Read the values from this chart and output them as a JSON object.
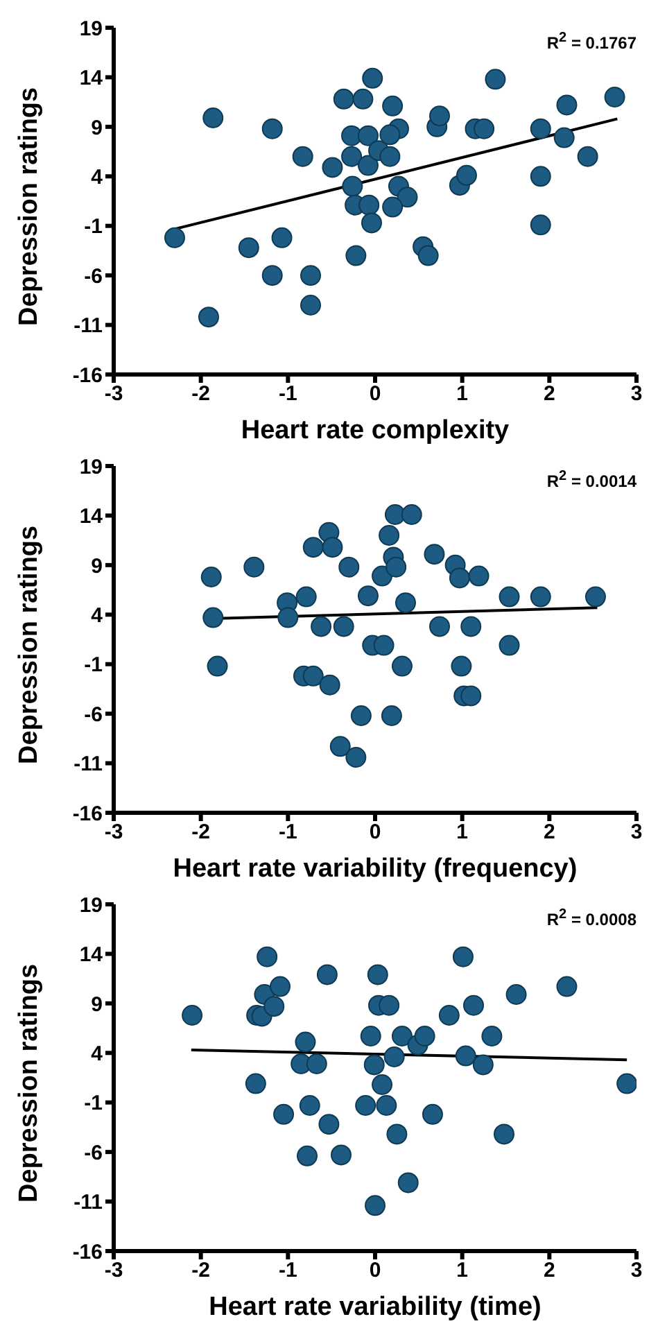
{
  "chart_data": [
    {
      "type": "scatter",
      "xlabel": "Heart rate complexity",
      "ylabel": "Depression ratings",
      "annotations": [
        "R$^{2}$ = 0.1767"
      ],
      "xlim": [
        -3,
        3
      ],
      "xticks": [
        -3,
        -2,
        -1,
        0,
        1,
        2,
        3
      ],
      "ylim": [
        -16,
        19
      ],
      "yticks": [
        -16,
        -11,
        -6,
        -1,
        4,
        9,
        14,
        19
      ],
      "series": [
        {
          "marker": "circle",
          "color": "#1d5b82",
          "x": [
            -1.86,
            -1.18,
            -0.83,
            -0.49,
            -0.36,
            -0.14,
            -0.03,
            -0.27,
            -0.08,
            -0.27,
            -0.08,
            0.04,
            0.17,
            0.2,
            0.27,
            0.17,
            -0.26,
            -0.23,
            -0.07,
            -0.04,
            0.27,
            0.37,
            0.2,
            -0.22,
            -2.3,
            -1.45,
            -1.07,
            -1.18,
            -0.74,
            -0.74,
            -1.91,
            0.55,
            0.61,
            0.71,
            0.74,
            0.97,
            1.05,
            1.15,
            1.25,
            1.38,
            1.9,
            1.9,
            1.9,
            2.17,
            2.2,
            2.44,
            2.75
          ],
          "values": [
            9.9,
            8.8,
            6.0,
            4.9,
            11.8,
            11.8,
            13.9,
            8.1,
            8.1,
            6.0,
            5.1,
            6.6,
            6.0,
            11.1,
            8.8,
            8.2,
            3.0,
            1.1,
            1.1,
            -0.7,
            3.0,
            1.9,
            0.9,
            -4.0,
            -2.2,
            -3.2,
            -2.2,
            -6.0,
            -6.0,
            -9.0,
            -10.2,
            -3.1,
            -4.0,
            9.0,
            10.1,
            3.1,
            4.1,
            8.8,
            8.8,
            13.8,
            8.8,
            4.0,
            -0.9,
            7.9,
            11.2,
            6.0,
            12.0
          ]
        },
        {
          "type": "line",
          "marker": "none",
          "color": "#000000",
          "x": [
            -2.29,
            2.78
          ],
          "values": [
            -1.3,
            9.8
          ]
        }
      ]
    },
    {
      "type": "scatter",
      "xlabel": "Heart rate variability (frequency)",
      "ylabel": "Depression ratings",
      "annotations": [
        "R$^{2}$ = 0.0014"
      ],
      "xlim": [
        -3,
        3
      ],
      "xticks": [
        -3,
        -2,
        -1,
        0,
        1,
        2,
        3
      ],
      "ylim": [
        -16,
        19
      ],
      "yticks": [
        -16,
        -11,
        -6,
        -1,
        4,
        9,
        14,
        19
      ],
      "series": [
        {
          "marker": "circle",
          "color": "#1d5b82",
          "x": [
            -1.88,
            -1.86,
            -1.81,
            -1.39,
            -1.01,
            -1.0,
            -0.79,
            -0.71,
            -0.53,
            -0.49,
            -0.3,
            -0.62,
            -0.36,
            -0.82,
            -0.71,
            -0.52,
            -0.16,
            -0.4,
            -0.22,
            -0.08,
            -0.03,
            0.1,
            0.08,
            0.16,
            0.21,
            0.24,
            0.23,
            0.42,
            0.35,
            0.31,
            0.19,
            0.68,
            0.74,
            0.92,
            0.97,
            1.19,
            1.1,
            0.99,
            1.02,
            1.1,
            1.54,
            1.54,
            1.9,
            2.53
          ],
          "values": [
            7.8,
            3.7,
            -1.2,
            8.8,
            5.2,
            3.7,
            5.8,
            10.8,
            12.3,
            10.8,
            8.8,
            2.8,
            2.8,
            -2.2,
            -2.2,
            -3.1,
            -6.2,
            -9.3,
            -10.4,
            5.9,
            0.9,
            0.9,
            7.9,
            12.0,
            9.8,
            8.8,
            14.1,
            14.1,
            5.2,
            -1.2,
            -6.2,
            10.1,
            2.8,
            9.0,
            7.7,
            7.9,
            2.8,
            -1.2,
            -4.2,
            -4.2,
            5.8,
            0.9,
            5.8,
            5.8
          ]
        },
        {
          "type": "line",
          "marker": "none",
          "color": "#000000",
          "x": [
            -1.88,
            2.55
          ],
          "values": [
            3.6,
            4.7
          ]
        }
      ]
    },
    {
      "type": "scatter",
      "xlabel": "Heart rate variability (time)",
      "ylabel": "Depression ratings",
      "annotations": [
        "R$^{2}$ = 0.0008"
      ],
      "xlim": [
        -3,
        3
      ],
      "xticks": [
        -3,
        -2,
        -1,
        0,
        1,
        2,
        3
      ],
      "ylim": [
        -16,
        19
      ],
      "yticks": [
        -16,
        -11,
        -6,
        -1,
        4,
        9,
        14,
        19
      ],
      "series": [
        {
          "marker": "circle",
          "color": "#1d5b82",
          "x": [
            -2.1,
            -1.24,
            -1.36,
            -1.3,
            -1.27,
            -1.16,
            -1.09,
            -1.37,
            -1.05,
            -0.8,
            -0.85,
            -0.67,
            -0.75,
            -0.78,
            -0.53,
            -0.39,
            -0.55,
            -0.11,
            -0.05,
            -0.01,
            0.03,
            0.04,
            0.16,
            0.08,
            0.13,
            0.0,
            0.22,
            0.25,
            0.31,
            0.49,
            0.57,
            0.38,
            0.66,
            0.85,
            1.01,
            1.04,
            1.13,
            1.24,
            1.34,
            1.48,
            1.62,
            2.2,
            2.89
          ],
          "values": [
            7.8,
            13.7,
            7.8,
            7.7,
            9.9,
            8.7,
            10.7,
            0.9,
            -2.2,
            5.1,
            2.9,
            2.9,
            -1.3,
            -6.4,
            -3.2,
            -6.3,
            11.9,
            -1.3,
            5.7,
            2.8,
            11.9,
            8.8,
            8.8,
            0.8,
            -1.3,
            -11.4,
            3.6,
            -4.2,
            5.7,
            4.8,
            5.7,
            -9.1,
            -2.2,
            7.8,
            13.7,
            3.7,
            8.8,
            2.8,
            5.7,
            -4.2,
            9.9,
            10.7,
            0.9
          ]
        },
        {
          "type": "line",
          "marker": "none",
          "color": "#000000",
          "x": [
            -2.11,
            2.89
          ],
          "values": [
            4.3,
            3.3
          ]
        }
      ]
    }
  ]
}
